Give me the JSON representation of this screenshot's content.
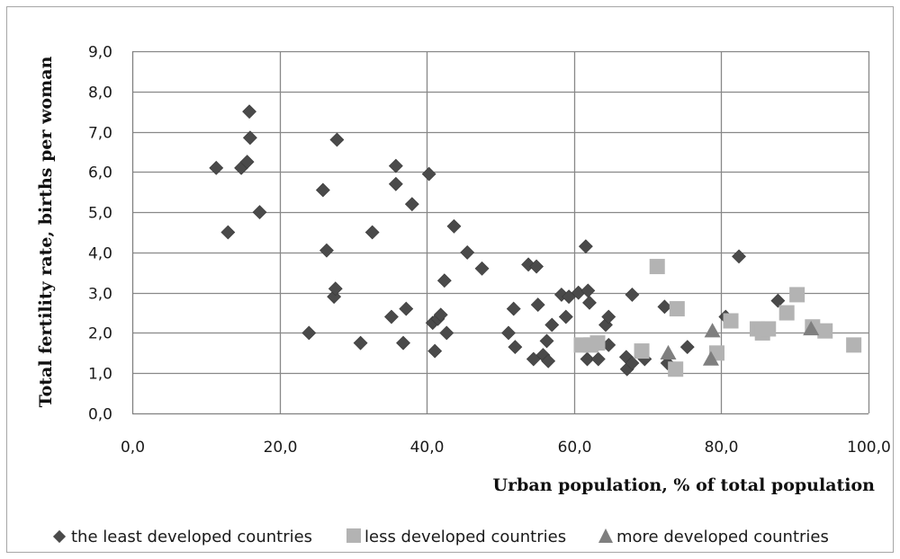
{
  "chart_data": {
    "type": "scatter",
    "title": "",
    "xlabel": "Urban population, % of total population",
    "ylabel": "Total fertility rate,  births per woman",
    "xlim": [
      0,
      100
    ],
    "ylim": [
      0,
      9
    ],
    "x_ticks": [
      "0,0",
      "20,0",
      "40,0",
      "60,0",
      "80,0",
      "100,0"
    ],
    "y_ticks": [
      "0,0",
      "1,0",
      "2,0",
      "3,0",
      "4,0",
      "5,0",
      "6,0",
      "7,0",
      "8,0",
      "9,0"
    ],
    "grid": "vertical and horizontal major gridlines",
    "legend_position": "bottom",
    "series": [
      {
        "name": "the least developed countries",
        "marker": "diamond",
        "color": "#4a4a4a",
        "points": [
          [
            11.4,
            6.1
          ],
          [
            13.0,
            4.5
          ],
          [
            14.8,
            6.1
          ],
          [
            15.6,
            6.25
          ],
          [
            15.9,
            7.5
          ],
          [
            16.0,
            6.85
          ],
          [
            17.3,
            5.0
          ],
          [
            24.0,
            2.0
          ],
          [
            25.9,
            5.55
          ],
          [
            26.4,
            4.05
          ],
          [
            27.4,
            2.9
          ],
          [
            27.6,
            3.1
          ],
          [
            27.8,
            6.8
          ],
          [
            31.0,
            1.75
          ],
          [
            32.6,
            4.5
          ],
          [
            35.2,
            2.4
          ],
          [
            35.8,
            6.15
          ],
          [
            35.8,
            5.7
          ],
          [
            36.8,
            1.75
          ],
          [
            37.2,
            2.6
          ],
          [
            38.0,
            5.2
          ],
          [
            40.3,
            5.95
          ],
          [
            40.8,
            2.25
          ],
          [
            41.1,
            1.55
          ],
          [
            41.5,
            2.35
          ],
          [
            41.9,
            2.45
          ],
          [
            42.4,
            3.3
          ],
          [
            42.7,
            2.0
          ],
          [
            43.7,
            4.65
          ],
          [
            45.5,
            4.0
          ],
          [
            47.5,
            3.6
          ],
          [
            51.1,
            2.0
          ],
          [
            51.8,
            2.6
          ],
          [
            52.0,
            1.65
          ],
          [
            53.8,
            3.7
          ],
          [
            54.5,
            1.35
          ],
          [
            54.9,
            3.65
          ],
          [
            55.1,
            2.7
          ],
          [
            55.8,
            1.45
          ],
          [
            56.3,
            1.8
          ],
          [
            56.5,
            1.3
          ],
          [
            57.0,
            2.2
          ],
          [
            58.3,
            2.95
          ],
          [
            58.9,
            2.4
          ],
          [
            59.3,
            2.9
          ],
          [
            60.6,
            3.0
          ],
          [
            61.6,
            4.15
          ],
          [
            61.8,
            1.35
          ],
          [
            61.9,
            3.05
          ],
          [
            62.1,
            2.75
          ],
          [
            63.3,
            1.35
          ],
          [
            64.3,
            2.2
          ],
          [
            64.7,
            2.4
          ],
          [
            64.7,
            1.7
          ],
          [
            67.1,
            1.4
          ],
          [
            67.2,
            1.1
          ],
          [
            67.9,
            2.95
          ],
          [
            67.9,
            1.25
          ],
          [
            69.6,
            1.35
          ],
          [
            72.3,
            2.65
          ],
          [
            72.7,
            1.25
          ],
          [
            75.4,
            1.65
          ],
          [
            80.6,
            2.4
          ],
          [
            82.4,
            3.9
          ],
          [
            87.7,
            2.8
          ]
        ]
      },
      {
        "name": "less developed countries",
        "marker": "square",
        "color": "#b3b3b3",
        "points": [
          [
            61.0,
            1.7
          ],
          [
            62.3,
            1.7
          ],
          [
            63.2,
            1.75
          ],
          [
            69.2,
            1.55
          ],
          [
            71.3,
            3.65
          ],
          [
            73.8,
            1.1
          ],
          [
            74.0,
            2.6
          ],
          [
            79.4,
            1.5
          ],
          [
            81.3,
            2.3
          ],
          [
            84.9,
            2.1
          ],
          [
            85.6,
            2.0
          ],
          [
            86.4,
            2.1
          ],
          [
            88.9,
            2.5
          ],
          [
            90.3,
            2.95
          ],
          [
            92.4,
            2.15
          ],
          [
            94.1,
            2.05
          ],
          [
            98.0,
            1.7
          ]
        ]
      },
      {
        "name": "more developed countries",
        "marker": "triangle",
        "color": "#7f7f7f",
        "points": [
          [
            72.8,
            1.5
          ],
          [
            78.6,
            1.35
          ],
          [
            78.8,
            2.05
          ],
          [
            92.2,
            2.1
          ]
        ]
      }
    ]
  }
}
